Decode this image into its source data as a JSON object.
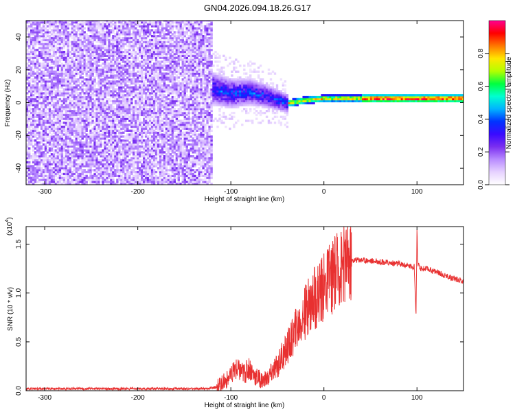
{
  "title": "GN04.2026.094.18.26.G17",
  "colors": {
    "spectrogram_scale": [
      "#ffffff",
      "#e6d2ff",
      "#b98cff",
      "#7b2ff0",
      "#3a0aff",
      "#0033ff",
      "#00b4ff",
      "#00ffd0",
      "#00ff40",
      "#b4ff00",
      "#ffe600",
      "#ff7800",
      "#ff0000",
      "#ff0090"
    ],
    "snr_line": "#e83030",
    "axis": "#000000"
  },
  "chart_data": [
    {
      "type": "heatmap",
      "xlabel": "Height of straight line (km)",
      "ylabel": "Frequency (Hz)",
      "xlim": [
        -320,
        150
      ],
      "ylim": [
        -50,
        50
      ],
      "xticks": [
        -300,
        -200,
        -100,
        0,
        100
      ],
      "xtick_labels": [
        "-300",
        "-200",
        "-100",
        "0",
        "100"
      ],
      "yticks": [
        -40,
        -20,
        0,
        20,
        40
      ],
      "ytick_labels": [
        "-40",
        "-20",
        "0",
        "20",
        "40"
      ],
      "colorbar": {
        "label": "Normalized spectral amplitude",
        "range": [
          0,
          1
        ],
        "ticks": [
          0.0,
          0.2,
          0.4,
          0.6,
          0.8
        ],
        "tick_labels": [
          "0.0",
          "0.2",
          "0.4",
          "0.6",
          "0.8"
        ]
      },
      "regions": [
        {
          "x": [
            -320,
            -120
          ],
          "f": [
            -50,
            50
          ],
          "amplitude": [
            0.05,
            0.2
          ],
          "description_level": "noise"
        },
        {
          "x": [
            -120,
            -40
          ],
          "f": [
            -20,
            25
          ],
          "amplitude": [
            0.1,
            0.45
          ]
        },
        {
          "x": [
            -40,
            150
          ],
          "f": [
            -2,
            4
          ],
          "amplitude": [
            0.4,
            1.0
          ]
        }
      ],
      "ridge": {
        "x": [
          -120,
          -100,
          -80,
          -60,
          -40,
          -20,
          0,
          50,
          100,
          150
        ],
        "f": [
          8,
          5,
          6,
          3,
          -1,
          1,
          2,
          2,
          2,
          2
        ]
      }
    },
    {
      "type": "line",
      "xlabel": "Height of straight line (km)",
      "ylabel": "SNR (10 * v/v)",
      "y_multiplier": "(x10",
      "y_multiplier_exp": "4",
      "y_multiplier_close": ")",
      "xlim": [
        -320,
        150
      ],
      "ylim": [
        0,
        1.68
      ],
      "xticks": [
        -300,
        -200,
        -100,
        0,
        100
      ],
      "xtick_labels": [
        "-300",
        "-200",
        "-100",
        "0",
        "100"
      ],
      "yticks": [
        0,
        0.5,
        1.0,
        1.5
      ],
      "ytick_labels": [
        "0.0",
        "0.5",
        "1.0",
        "1.5"
      ],
      "series": [
        {
          "x": [
            -320,
            -300,
            -250,
            -200,
            -150,
            -125,
            -115,
            -110,
            -100,
            -95,
            -90,
            -85,
            -80,
            -75,
            -70,
            -65,
            -60,
            -55,
            -50,
            -45,
            -40,
            -35,
            -30,
            -25,
            -20,
            -15,
            -10,
            -5,
            0,
            5,
            10,
            15,
            20,
            25,
            30,
            35,
            40,
            50,
            60,
            70,
            80,
            90,
            97,
            99,
            100,
            101,
            103,
            110,
            120,
            130,
            140,
            150
          ],
          "values": [
            0.02,
            0.02,
            0.02,
            0.02,
            0.02,
            0.02,
            0.04,
            0.08,
            0.14,
            0.22,
            0.2,
            0.18,
            0.24,
            0.16,
            0.13,
            0.1,
            0.13,
            0.2,
            0.26,
            0.34,
            0.43,
            0.52,
            0.62,
            0.72,
            0.8,
            0.88,
            0.95,
            1.02,
            1.07,
            1.12,
            1.18,
            1.23,
            1.28,
            1.31,
            1.33,
            1.34,
            1.34,
            1.33,
            1.32,
            1.31,
            1.3,
            1.28,
            1.27,
            0.8,
            1.65,
            1.3,
            1.25,
            1.25,
            1.22,
            1.18,
            1.15,
            1.12
          ]
        }
      ]
    }
  ]
}
